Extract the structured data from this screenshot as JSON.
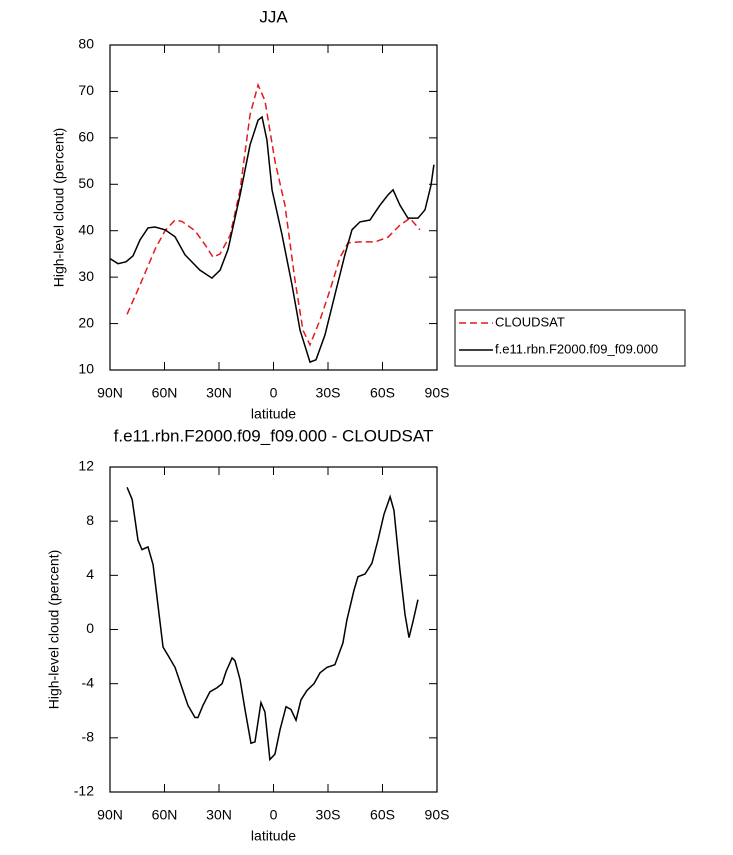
{
  "chart_data": [
    {
      "type": "line",
      "title": "JJA",
      "x_label": "latitude",
      "y_label": "High-level cloud (percent)",
      "xlim": [
        90,
        -90
      ],
      "xticks": [
        {
          "value": 90,
          "label": "90N"
        },
        {
          "value": 60,
          "label": "60N"
        },
        {
          "value": 30,
          "label": "30N"
        },
        0,
        {
          "value": -30,
          "label": "30S"
        },
        {
          "value": -60,
          "label": "60S"
        },
        {
          "value": -90,
          "label": "90S"
        }
      ],
      "ylim": [
        10,
        80
      ],
      "yticks": [
        10,
        20,
        30,
        40,
        50,
        60,
        70,
        80
      ],
      "legend": "right",
      "series": [
        {
          "name": "CLOUDSAT",
          "color": "#e41a1c",
          "line_style": "dashed",
          "x": [
            80.6,
            73.5,
            65.2,
            59.7,
            54.2,
            50.4,
            43.2,
            37.7,
            33.3,
            29.4,
            23.9,
            18.4,
            12.9,
            8.5,
            4.7,
            -0.8,
            -6.3,
            -11.8,
            -16.2,
            -20.1,
            -25.6,
            -31.1,
            -36.6,
            -41,
            -47.6,
            -55.9,
            -63,
            -69.6,
            -75.1,
            -80.6
          ],
          "values": [
            22,
            28.3,
            36,
            40,
            42.3,
            42,
            40,
            37,
            34.3,
            35,
            39,
            48.8,
            65,
            71.4,
            68,
            55,
            45.5,
            29.4,
            18.6,
            15.4,
            20.8,
            27.2,
            34.2,
            37.4,
            37.6,
            37.6,
            38.6,
            41.2,
            42.7,
            40.2
          ]
        },
        {
          "name": "f.e11.rbn.F2000.f09_f09.000",
          "color": "#000000",
          "line_style": "solid",
          "x": [
            90,
            85.6,
            81.2,
            77.3,
            73.5,
            69.1,
            65.2,
            59.7,
            54.2,
            48.7,
            40.5,
            33.9,
            29.4,
            25,
            18.4,
            12.9,
            8.5,
            6.3,
            3.6,
            0.8,
            -4.7,
            -10.2,
            -14.6,
            -20.1,
            -23.4,
            -28.3,
            -33.8,
            -39.3,
            -43.2,
            -47.6,
            -53.1,
            -58.6,
            -63,
            -65.8,
            -69.6,
            -74,
            -79.5,
            -83.4,
            -86.7,
            -88.3
          ],
          "values": [
            34,
            32.9,
            33.3,
            34.6,
            38,
            40.6,
            40.8,
            40.2,
            38.7,
            34.8,
            31.5,
            29.8,
            31.5,
            36,
            47.7,
            58.5,
            63.8,
            64.5,
            59.5,
            48.8,
            39.1,
            28.3,
            18.6,
            11.7,
            12.2,
            17.5,
            26.2,
            34.8,
            40.2,
            41.9,
            42.3,
            45.5,
            47.7,
            48.8,
            45.5,
            42.7,
            42.7,
            44.5,
            49.8,
            54.2
          ]
        }
      ]
    },
    {
      "type": "line",
      "title": "f.e11.rbn.F2000.f09_f09.000 - CLOUDSAT",
      "x_label": "latitude",
      "y_label": "High-level cloud (percent)",
      "xlim": [
        90,
        -90
      ],
      "xticks": [
        {
          "value": 90,
          "label": "90N"
        },
        {
          "value": 60,
          "label": "60N"
        },
        {
          "value": 30,
          "label": "30N"
        },
        0,
        {
          "value": -30,
          "label": "30S"
        },
        {
          "value": -60,
          "label": "60S"
        },
        {
          "value": -90,
          "label": "90S"
        }
      ],
      "ylim": [
        -12,
        12
      ],
      "yticks": [
        -12,
        -8,
        -4,
        0,
        4,
        8,
        12
      ],
      "series": [
        {
          "color": "#000000",
          "line_style": "solid",
          "x": [
            80.6,
            77.8,
            74.6,
            72.4,
            69.1,
            66.3,
            63.6,
            60.8,
            58.1,
            54.2,
            50.4,
            47.1,
            43.2,
            41.6,
            38.8,
            35,
            31.1,
            28.3,
            26.1,
            22.8,
            21.2,
            18.4,
            15.7,
            12.4,
            10.2,
            6.9,
            4.7,
            2,
            -0.8,
            -3.6,
            -6.9,
            -9.6,
            -12.4,
            -15.1,
            -18.4,
            -22.3,
            -25.6,
            -29.4,
            -33.8,
            -38.2,
            -40.4,
            -44.3,
            -46.5,
            -50.4,
            -54.2,
            -57.5,
            -60.8,
            -64.2,
            -66.3,
            -69.6,
            -72.4,
            -74.6,
            -76.8,
            -79.5
          ],
          "values": [
            10.5,
            9.6,
            6.6,
            5.9,
            6.1,
            4.8,
            1.8,
            -1.3,
            -1.9,
            -2.8,
            -4.3,
            -5.6,
            -6.5,
            -6.5,
            -5.6,
            -4.6,
            -4.3,
            -4,
            -3.1,
            -2.1,
            -2.3,
            -3.7,
            -5.9,
            -8.4,
            -8.3,
            -5.4,
            -6.1,
            -9.6,
            -9.2,
            -7.4,
            -5.7,
            -5.9,
            -6.7,
            -5.2,
            -4.5,
            -4,
            -3.2,
            -2.8,
            -2.6,
            -1,
            0.7,
            2.9,
            3.9,
            4.1,
            4.9,
            6.6,
            8.5,
            9.8,
            8.8,
            4.4,
            1.1,
            -0.6,
            0.6,
            2.2
          ]
        }
      ]
    }
  ]
}
